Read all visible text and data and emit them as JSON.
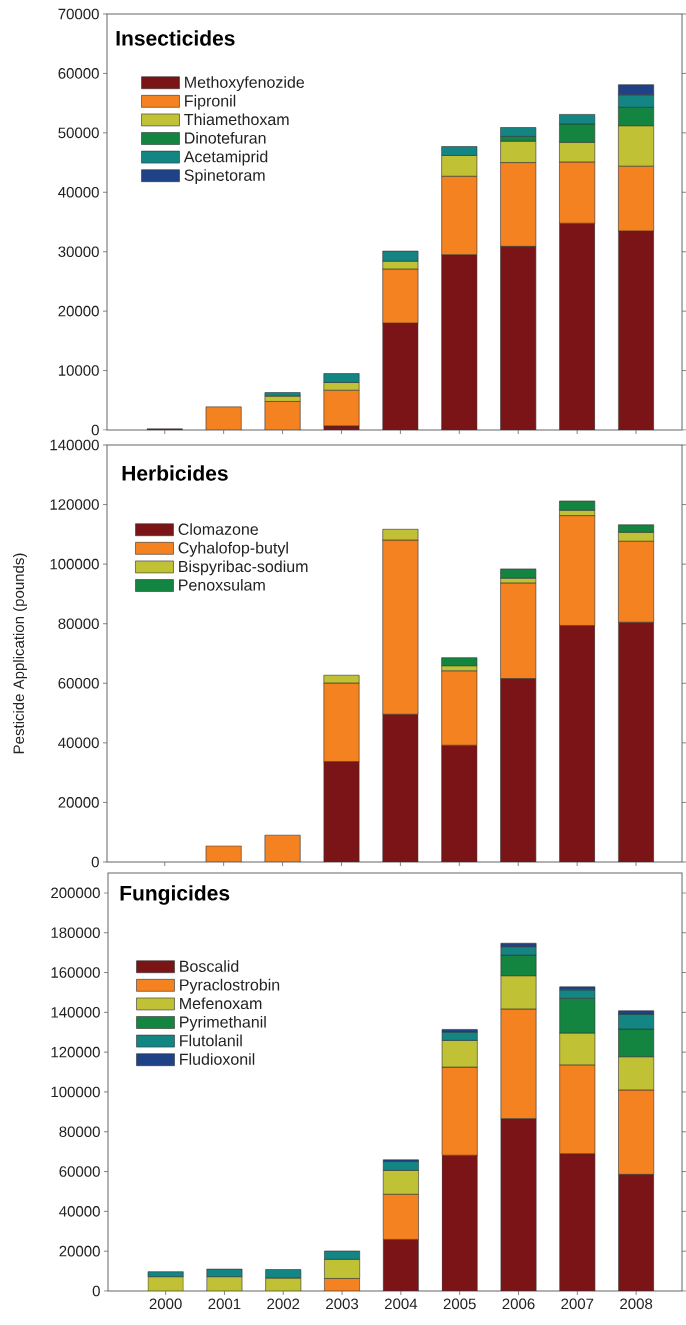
{
  "chart_data": [
    {
      "type": "bar",
      "stacked": true,
      "title": "Insecticides",
      "categories": [
        "2000",
        "2001",
        "2002",
        "2003",
        "2004",
        "2005",
        "2006",
        "2007",
        "2008"
      ],
      "series": [
        {
          "name": "Methoxyfenozide",
          "color": "#7b1416",
          "values": [
            200,
            null,
            null,
            700,
            18000,
            29500,
            30900,
            34800,
            33500
          ]
        },
        {
          "name": "Fipronil",
          "color": "#f58220",
          "values": [
            null,
            3900,
            4800,
            6000,
            9100,
            13200,
            14100,
            10300,
            10900
          ]
        },
        {
          "name": "Thiamethoxam",
          "color": "#c1c136",
          "values": [
            null,
            null,
            900,
            1300,
            1300,
            3500,
            3600,
            3300,
            6800
          ]
        },
        {
          "name": "Dinotefuran",
          "color": "#138541",
          "values": [
            null,
            null,
            null,
            null,
            null,
            null,
            800,
            3100,
            3100
          ]
        },
        {
          "name": "Acetamiprid",
          "color": "#138683",
          "values": [
            null,
            null,
            600,
            1500,
            1700,
            1500,
            1500,
            1600,
            2100
          ]
        },
        {
          "name": "Spinetoram",
          "color": "#1f4287",
          "values": [
            null,
            null,
            null,
            null,
            null,
            null,
            null,
            null,
            1700
          ]
        }
      ],
      "ylim": [
        0,
        70000
      ],
      "yticks": [
        0,
        10000,
        20000,
        30000,
        40000,
        50000,
        60000,
        70000
      ],
      "legend": "top left",
      "tick_labels": "y"
    },
    {
      "type": "bar",
      "stacked": true,
      "title": "Herbicides",
      "ylabel": "Pesticide Application (pounds)",
      "categories": [
        "2000",
        "2001",
        "2002",
        "2003",
        "2004",
        "2005",
        "2006",
        "2007",
        "2008"
      ],
      "series": [
        {
          "name": "Clomazone",
          "color": "#7b1416",
          "values": [
            null,
            null,
            null,
            33700,
            49600,
            39200,
            61600,
            79400,
            80500
          ]
        },
        {
          "name": "Cyhalofop-butyl",
          "color": "#f58220",
          "values": [
            null,
            5400,
            9000,
            26400,
            58500,
            25000,
            32100,
            36900,
            27200
          ]
        },
        {
          "name": "Bispyribac-sodium",
          "color": "#c1c136",
          "values": [
            null,
            null,
            null,
            2600,
            3600,
            1700,
            1600,
            1800,
            3000
          ]
        },
        {
          "name": "Penoxsulam",
          "color": "#138541",
          "values": [
            null,
            null,
            null,
            null,
            null,
            2700,
            3100,
            3100,
            2500
          ]
        }
      ],
      "ylim": [
        0,
        140000
      ],
      "yticks": [
        0,
        20000,
        40000,
        60000,
        80000,
        100000,
        120000,
        140000
      ],
      "legend": "top left",
      "tick_labels": "y"
    },
    {
      "type": "bar",
      "stacked": true,
      "title": "Fungicides",
      "categories": [
        "2000",
        "2001",
        "2002",
        "2003",
        "2004",
        "2005",
        "2006",
        "2007",
        "2008"
      ],
      "series": [
        {
          "name": "Boscalid",
          "color": "#7b1416",
          "values": [
            null,
            null,
            null,
            null,
            25900,
            68200,
            86600,
            69000,
            58600
          ]
        },
        {
          "name": "Pyraclostrobin",
          "color": "#f58220",
          "values": [
            null,
            null,
            null,
            6300,
            22700,
            44300,
            55100,
            44600,
            42400
          ]
        },
        {
          "name": "Mefenoxam",
          "color": "#c1c136",
          "values": [
            7200,
            7200,
            6500,
            9600,
            12000,
            13400,
            16700,
            16000,
            16700
          ]
        },
        {
          "name": "Pyrimethanil",
          "color": "#138541",
          "values": [
            null,
            null,
            null,
            null,
            null,
            null,
            10400,
            17400,
            13900
          ]
        },
        {
          "name": "Flutolanil",
          "color": "#138683",
          "values": [
            2500,
            3800,
            4300,
            4200,
            4500,
            4200,
            4200,
            4300,
            7500
          ]
        },
        {
          "name": "Fludioxonil",
          "color": "#1f4287",
          "values": [
            null,
            null,
            null,
            null,
            800,
            1300,
            1700,
            1500,
            1700
          ]
        }
      ],
      "ylim": [
        0,
        210000
      ],
      "yticks": [
        0,
        20000,
        40000,
        60000,
        80000,
        100000,
        120000,
        140000,
        160000,
        180000,
        200000
      ],
      "legend": "top left"
    }
  ]
}
